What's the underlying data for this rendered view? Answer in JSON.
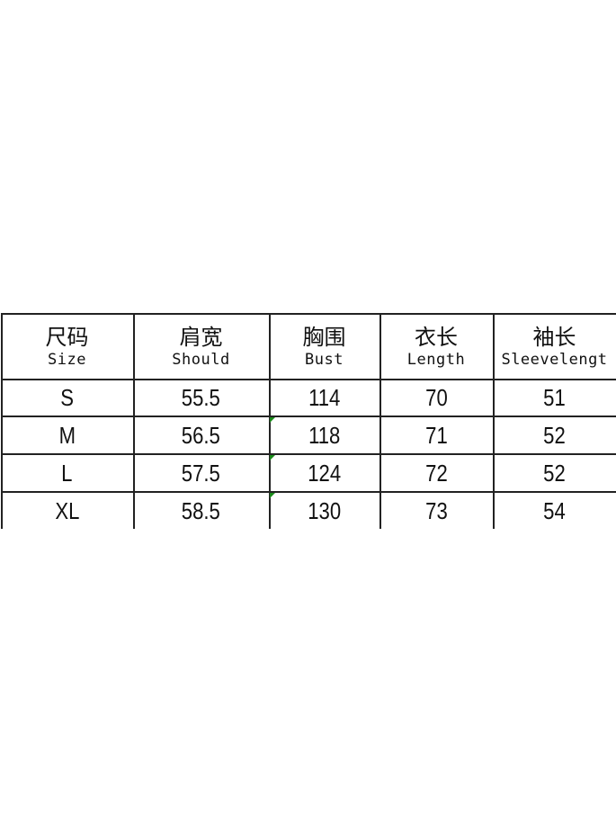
{
  "table": {
    "headers": [
      {
        "zh": "尺码",
        "en": "Size"
      },
      {
        "zh": "肩宽",
        "en": "Should"
      },
      {
        "zh": "胸围",
        "en": "Bust"
      },
      {
        "zh": "衣长",
        "en": "Length"
      },
      {
        "zh": "袖长",
        "en": "Sleevelengt"
      }
    ],
    "rows": [
      [
        "S",
        "55.5",
        "114",
        "70",
        "51"
      ],
      [
        "M",
        "56.5",
        "118",
        "71",
        "52"
      ],
      [
        "L",
        "57.5",
        "124",
        "72",
        "52"
      ],
      [
        "XL",
        "58.5",
        "130",
        "73",
        "54"
      ]
    ],
    "marker_color": "#1a8a1a"
  }
}
